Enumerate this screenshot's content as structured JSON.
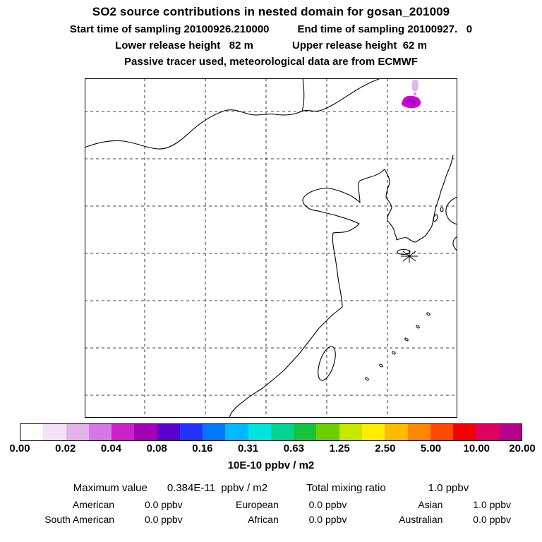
{
  "header": {
    "title": "SO2 source contributions in nested domain for gosan_201009",
    "start_time": "Start time of sampling 20100926.210000",
    "end_time": "End time of sampling 20100927.   0",
    "lower_release": "Lower release height   82 m",
    "upper_release": "Upper release height  62 m",
    "tracer_note": "Passive tracer used, meteorological data are from ECMWF"
  },
  "colorbar": {
    "labels": [
      "0.00",
      "0.02",
      "0.04",
      "0.08",
      "0.16",
      "0.31",
      "0.63",
      "1.25",
      "2.50",
      "5.00",
      "10.00",
      "20.00"
    ],
    "unit": "10E-10 ppbv / m2",
    "colors": [
      "#ffffff",
      "#f3e1f6",
      "#e3b2ee",
      "#d478e6",
      "#cc22cc",
      "#a400b6",
      "#5c00cd",
      "#2432ff",
      "#0077ff",
      "#00baff",
      "#00e4e0",
      "#00d592",
      "#16c43c",
      "#6ad000",
      "#c8e800",
      "#ffee00",
      "#ffbb00",
      "#ff8800",
      "#ff4a00",
      "#f40000",
      "#e00060",
      "#b8008e"
    ]
  },
  "stats": {
    "maximum_label": "Maximum value",
    "maximum_value": "0.384E-11  ppbv / m2",
    "total_label": "Total mixing ratio",
    "total_value": "1.0 ppbv",
    "regions": [
      {
        "name": "American",
        "value": "0.0 ppbv"
      },
      {
        "name": "European",
        "value": "0.0 ppbv"
      },
      {
        "name": "Asian",
        "value": "1.0 ppbv"
      },
      {
        "name": "South American",
        "value": "0.0 ppbv"
      },
      {
        "name": "African",
        "value": "0.0 ppbv"
      },
      {
        "name": "Australian",
        "value": "0.0 ppbv"
      }
    ]
  },
  "chart_data": {
    "type": "heatmap",
    "title": "SO2 source contributions in nested domain for gosan_201009",
    "subtitle_lines": [
      "Start time of sampling 20100926.210000   End time of sampling 20100927.   0",
      "Lower release height 82 m   Upper release height 62 m",
      "Passive tracer used, meteorological data are from ECMWF"
    ],
    "map_region": "East Asia (China, Korea, Japan, Taiwan) with dashed lat/lon grid",
    "colorbar_scale": [
      0.0,
      0.02,
      0.04,
      0.08,
      0.16,
      0.31,
      0.63,
      1.25,
      2.5,
      5.0,
      10.0,
      20.0
    ],
    "colorbar_unit": "10E-10 ppbv / m2",
    "maximum_value": "0.384E-11 ppbv / m2",
    "total_mixing_ratio_ppbv": 1.0,
    "region_contributions_ppbv": {
      "American": 0.0,
      "European": 0.0,
      "Asian": 1.0,
      "South American": 0.0,
      "African": 0.0,
      "Australian": 0.0
    },
    "receptor_marker": "asterisk near Jeju/Gosan, south of Korean peninsula",
    "plume": "small magenta concentration patch near upper-right of domain",
    "legend_position": "bottom"
  }
}
